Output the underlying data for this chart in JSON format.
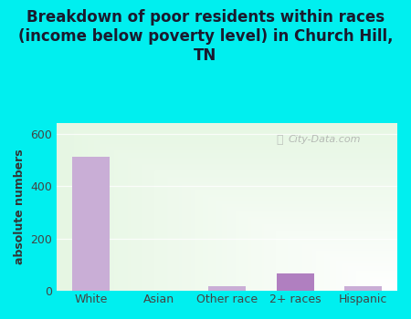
{
  "title": "Breakdown of poor residents within races\n(income below poverty level) in Church Hill,\nTN",
  "categories": [
    "White",
    "Asian",
    "Other race",
    "2+ races",
    "Hispanic"
  ],
  "values": [
    510,
    0,
    18,
    68,
    18
  ],
  "bar_color": "#c9aed6",
  "bar_color_2plus": "#b07fc0",
  "ylabel": "absolute numbers",
  "ylim": [
    0,
    640
  ],
  "yticks": [
    0,
    200,
    400,
    600
  ],
  "background_color": "#00efef",
  "plot_bg_topleft": "#c8e6c0",
  "plot_bg_right": "#ffffff",
  "title_fontsize": 12,
  "title_color": "#1a1a2e",
  "axis_label_color": "#333333",
  "tick_color": "#444444",
  "watermark": "City-Data.com"
}
